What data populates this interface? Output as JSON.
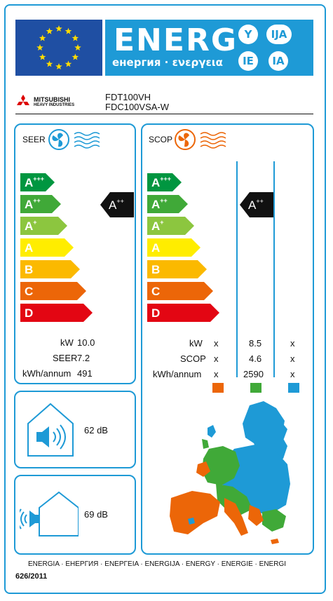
{
  "header": {
    "title": "ENERG",
    "subtitle": "енергия · ενεργεια",
    "lang_badges": [
      "Y",
      "IJA",
      "IE",
      "IA"
    ],
    "colors": {
      "blue": "#1e9ad6",
      "eu_blue": "#1f4fa3",
      "eu_star": "#ffdd00"
    }
  },
  "brand": {
    "name_line1": "MITSUBISHI",
    "name_line2": "HEAVY INDUSTRIES",
    "model_indoor": "FDT100VH",
    "model_outdoor": "FDC100VSA-W"
  },
  "seer_panel": {
    "label": "SEER",
    "icon": "fan-cooling-icon",
    "classes": [
      "A",
      "A",
      "A",
      "A",
      "B",
      "C",
      "D"
    ],
    "class_sups": [
      "+++",
      "++",
      "+",
      "",
      "",
      "",
      ""
    ],
    "class_colors": [
      "#009640",
      "#40a938",
      "#8cc63f",
      "#ffed00",
      "#fbb900",
      "#ec6608",
      "#e30613"
    ],
    "rating": "A",
    "rating_sup": "++",
    "stats": [
      {
        "label": "kW",
        "value": "10.0"
      },
      {
        "label": "SEER",
        "value": "7.2"
      },
      {
        "label": "kWh/annum",
        "value": "491"
      }
    ]
  },
  "scop_panel": {
    "label": "SCOP",
    "icon": "fan-heating-icon",
    "rating": "A",
    "rating_sup": "++",
    "stats_labels": [
      "kW",
      "SCOP",
      "kWh/annum"
    ],
    "columns": [
      {
        "zone": "warmer",
        "color": "#ec6608",
        "values": [
          "x",
          "x",
          "x"
        ]
      },
      {
        "zone": "average",
        "color": "#40a938",
        "values": [
          "8.5",
          "4.6",
          "2590"
        ]
      },
      {
        "zone": "colder",
        "color": "#1e9ad6",
        "values": [
          "x",
          "x",
          "x"
        ]
      }
    ]
  },
  "noise": {
    "indoor": {
      "value": "62 dB",
      "icon": "indoor-speaker-icon"
    },
    "outdoor": {
      "value": "69 dB",
      "icon": "outdoor-speaker-icon"
    }
  },
  "footer": {
    "languages": "ENERGIA · ЕНЕРГИЯ · ΕΝΕΡΓΕΙΑ · ENERGIJA · ENERGY · ENERGIE · ENERGI",
    "regulation": "626/2011"
  }
}
